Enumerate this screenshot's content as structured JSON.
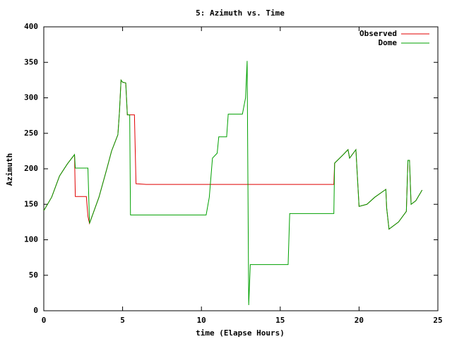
{
  "chart_data": {
    "type": "line",
    "title": "5: Azimuth vs. Time",
    "x_label": "time (Elapse Hours)",
    "y_label": "Azimuth",
    "legend": "top-right",
    "xlim": [
      0,
      25
    ],
    "xticks": [
      0,
      5,
      10,
      15,
      20,
      25
    ],
    "ylim": [
      0,
      400
    ],
    "yticks": [
      0,
      50,
      100,
      150,
      200,
      250,
      300,
      350,
      400
    ],
    "x": [
      0,
      0.5,
      1.0,
      1.5,
      1.95,
      2.0,
      2.7,
      2.8,
      2.9,
      3.5,
      4.0,
      4.3,
      4.7,
      4.8,
      4.9,
      5.0,
      5.2,
      5.3,
      5.45,
      5.5,
      5.75,
      5.85,
      6.5,
      10.3,
      10.5,
      10.7,
      11.0,
      11.1,
      11.6,
      11.7,
      12.6,
      12.8,
      12.9,
      13.0,
      13.1,
      15.5,
      15.6,
      18.4,
      18.45,
      19.0,
      19.3,
      19.4,
      19.8,
      20.0,
      20.5,
      21.0,
      21.7,
      21.75,
      21.9,
      22.5,
      23.0,
      23.1,
      23.2,
      23.3,
      23.6,
      24.0
    ],
    "series": [
      {
        "name": "Observed",
        "color": "#e00000",
        "values": [
          141,
          160,
          190,
          207,
          220,
          161,
          161,
          133,
          123,
          160,
          200,
          225,
          248,
          280,
          325,
          322,
          321,
          276,
          276,
          276,
          276,
          179,
          178,
          178,
          178,
          178,
          178,
          178,
          178,
          178,
          178,
          178,
          178,
          178,
          178,
          178,
          178,
          178,
          208,
          220,
          227,
          215,
          227,
          147,
          150,
          160,
          171,
          145,
          115,
          125,
          140,
          212,
          212,
          150,
          155,
          170
        ]
      },
      {
        "name": "Dome",
        "color": "#00a000",
        "values": [
          141,
          160,
          190,
          207,
          220,
          201,
          201,
          201,
          123,
          160,
          200,
          225,
          248,
          280,
          325,
          322,
          321,
          276,
          276,
          135,
          135,
          135,
          135,
          135,
          160,
          215,
          222,
          245,
          245,
          277,
          277,
          300,
          352,
          8,
          65,
          65,
          137,
          137,
          208,
          220,
          227,
          215,
          227,
          147,
          150,
          160,
          171,
          145,
          115,
          125,
          140,
          212,
          212,
          150,
          155,
          170
        ]
      }
    ]
  }
}
